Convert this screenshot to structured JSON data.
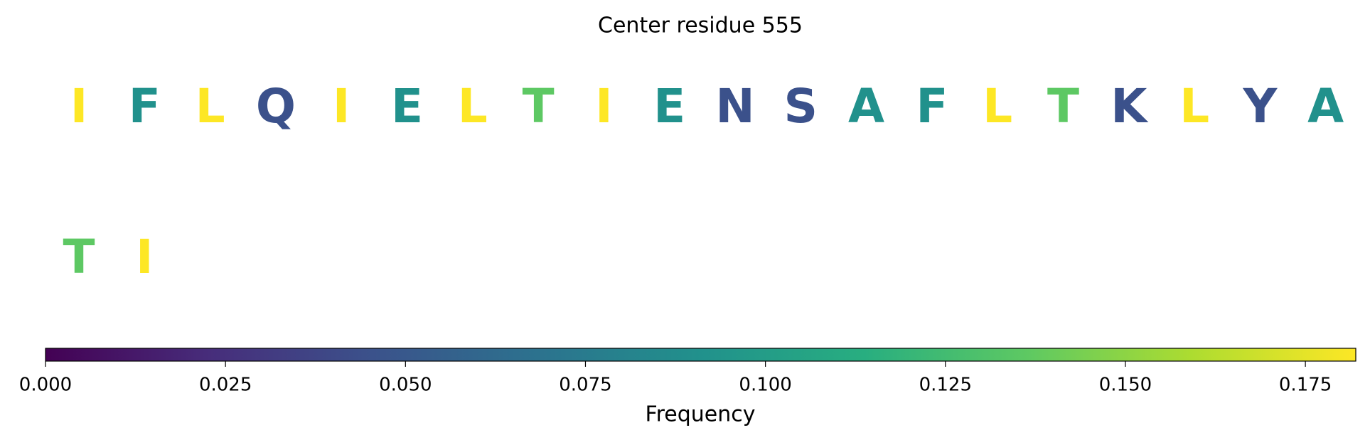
{
  "chart_data": {
    "type": "residue_map",
    "title": "Center residue 555",
    "letters": [
      "I",
      "F",
      "L",
      "Q",
      "I",
      "E",
      "L",
      "T",
      "I",
      "E",
      "N",
      "S",
      "A",
      "F",
      "L",
      "T",
      "K",
      "L",
      "Y",
      "A",
      "T",
      "I"
    ],
    "values": [
      0.182,
      0.091,
      0.182,
      0.045,
      0.182,
      0.091,
      0.182,
      0.136,
      0.182,
      0.091,
      0.045,
      0.045,
      0.091,
      0.091,
      0.182,
      0.136,
      0.045,
      0.182,
      0.045,
      0.091,
      0.136,
      0.182
    ],
    "colormap": "viridis",
    "xlim": [
      0,
      0.182
    ],
    "xticks": [
      {
        "value": 0,
        "label": "0.000"
      },
      {
        "value": 0.025,
        "label": "0.025"
      },
      {
        "value": 0.05,
        "label": "0.050"
      },
      {
        "value": 0.075,
        "label": "0.075"
      },
      {
        "value": 0.1,
        "label": "0.100"
      },
      {
        "value": 0.125,
        "label": "0.125"
      },
      {
        "value": 0.15,
        "label": "0.150"
      },
      {
        "value": 0.175,
        "label": "0.175"
      }
    ],
    "xlabel": "Frequency"
  }
}
